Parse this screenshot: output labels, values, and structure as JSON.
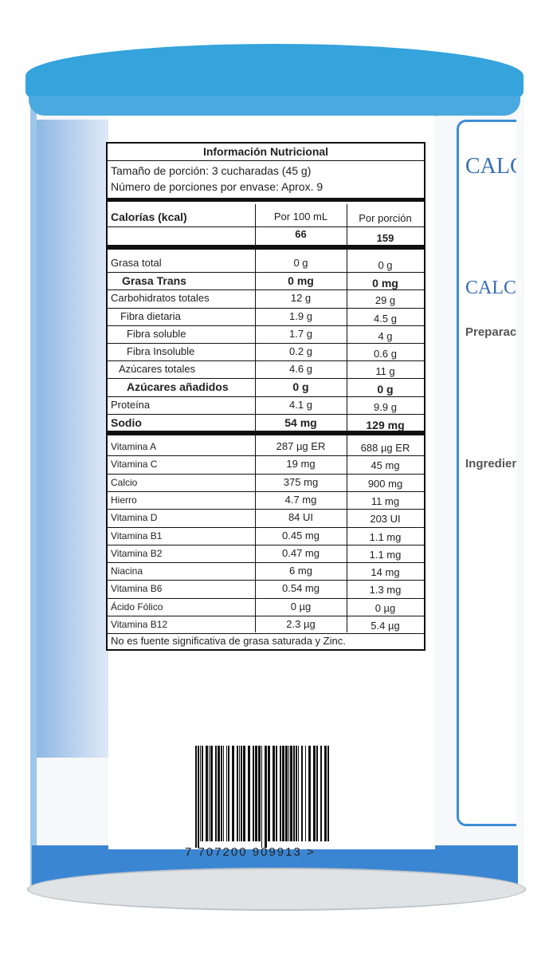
{
  "label": {
    "title": "Información Nutricional",
    "serving_size": "Tamaño de porción: 3 cucharadas (45 g)",
    "servings": "Número de porciones por envase: Aprox. 9",
    "calories_label": "Calorías (kcal)",
    "col1": "Por 100 mL",
    "col2": "Por porción",
    "cal1": "66",
    "cal2": "159",
    "rows": [
      [
        "Grasa total",
        "0 g",
        "0 g"
      ],
      [
        "Grasa Trans",
        "0 mg",
        "0 mg"
      ],
      [
        "Carbohidratos totales",
        "12 g",
        "29 g"
      ],
      [
        "Fibra dietaria",
        "1.9 g",
        "4.5 g"
      ],
      [
        "Fibra soluble",
        "1.7 g",
        "4 g"
      ],
      [
        "Fibra Insoluble",
        "0.2 g",
        "0.6 g"
      ],
      [
        "Azúcares totales",
        "4.6 g",
        "11 g"
      ],
      [
        "Azúcares añadidos",
        "0 g",
        "0 g"
      ],
      [
        "Proteína",
        "4.1 g",
        "9.9 g"
      ],
      [
        "Sodio",
        "54 mg",
        "129 mg"
      ]
    ],
    "vitamins": [
      [
        "Vitamina A",
        "287 µg ER",
        "688 µg ER"
      ],
      [
        "Vitamina C",
        "19 mg",
        "45 mg"
      ],
      [
        "Calcio",
        "375 mg",
        "900 mg"
      ],
      [
        "Hierro",
        "4.7 mg",
        "11 mg"
      ],
      [
        "Vitamina D",
        "84 UI",
        "203 UI"
      ],
      [
        "Vitamina B1",
        "0.45 mg",
        "1.1 mg"
      ],
      [
        "Vitamina B2",
        "0.47 mg",
        "1.1 mg"
      ],
      [
        "Niacina",
        "6 mg",
        "14 mg"
      ],
      [
        "Vitamina B6",
        "0.54 mg",
        "1.3 mg"
      ],
      [
        "Ácido Fólico",
        "0 µg",
        "0 µg"
      ],
      [
        "Vitamina B12",
        "2.3 µg",
        "5.4 µg"
      ]
    ],
    "footnote": "No es fuente significativa de grasa saturada y Zinc."
  },
  "barcode": "7 707200 909913 >",
  "side_panel": {
    "brand": "CALCAD",
    "brand2": "CALCAD",
    "preparation": "Preparación:",
    "ingredients": "Ingredientes:"
  }
}
